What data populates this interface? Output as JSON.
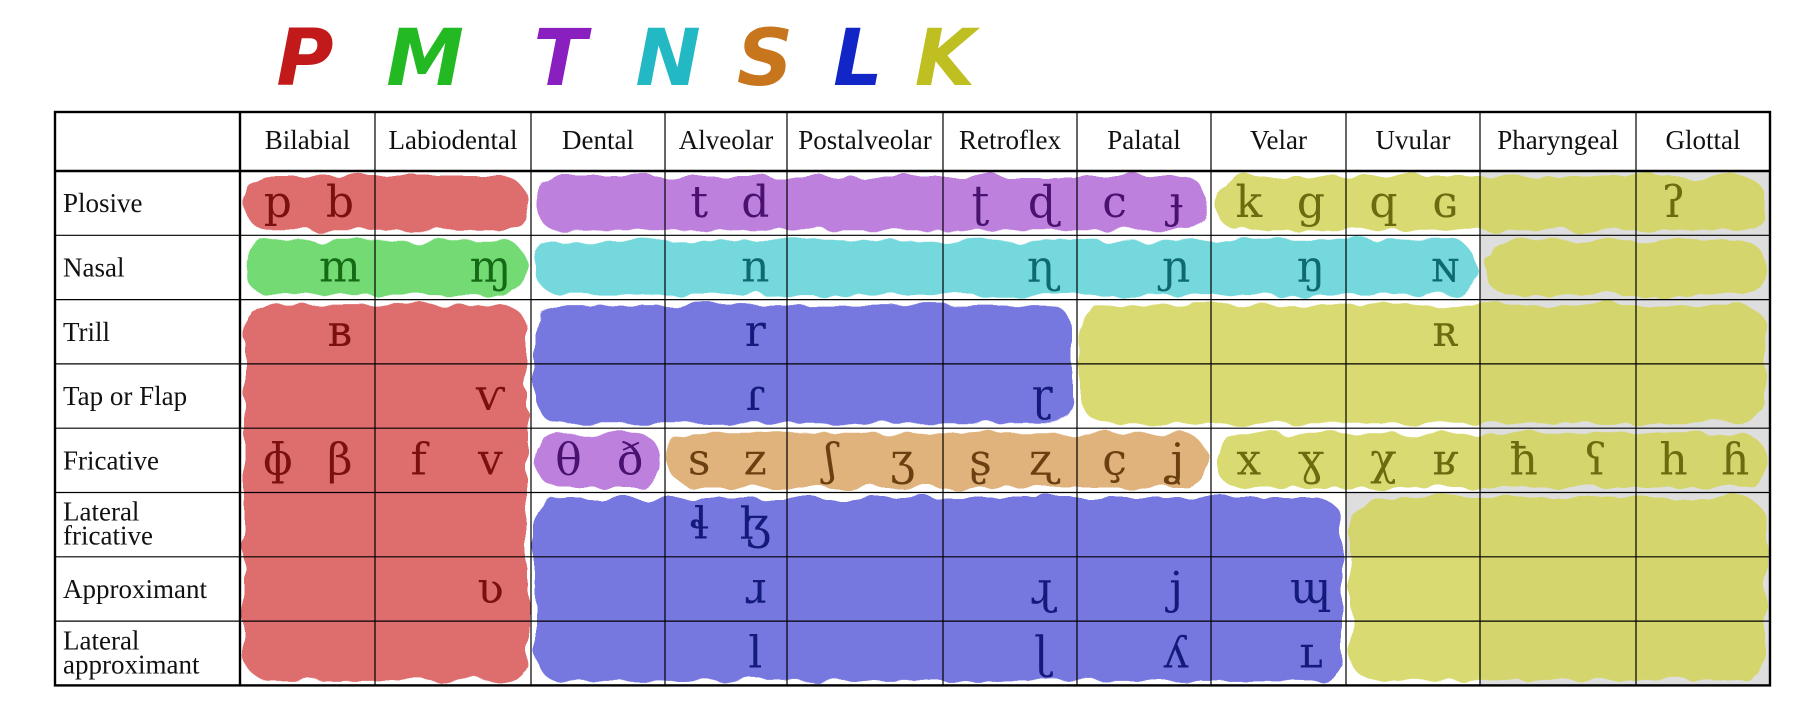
{
  "title_letters": [
    {
      "char": "P",
      "color": "#c21a1a"
    },
    {
      "char": "M",
      "color": "#22b922"
    },
    {
      "char": "T",
      "color": "#8a1fbf"
    },
    {
      "char": "N",
      "color": "#22b8c4"
    },
    {
      "char": "S",
      "color": "#c8761d"
    },
    {
      "char": "L",
      "color": "#1226c8"
    },
    {
      "char": "K",
      "color": "#bfbf22"
    }
  ],
  "columns": [
    "Bilabial",
    "Labiodental",
    "Dental",
    "Alveolar",
    "Postalveolar",
    "Retroflex",
    "Palatal",
    "Velar",
    "Uvular",
    "Pharyngeal",
    "Glottal"
  ],
  "rows": [
    [
      "Plosive"
    ],
    [
      "Nasal"
    ],
    [
      "Trill"
    ],
    [
      "Tap or Flap"
    ],
    [
      "Fricative"
    ],
    [
      "Lateral",
      "fricative"
    ],
    [
      "Approximant"
    ],
    [
      "Lateral",
      "approximant"
    ]
  ],
  "symbols": [
    {
      "t": "p",
      "r": 0,
      "c": 0,
      "s": "L",
      "g": "P"
    },
    {
      "t": "b",
      "r": 0,
      "c": 0,
      "s": "R",
      "g": "P"
    },
    {
      "t": "t",
      "r": 0,
      "c": 3,
      "s": "L",
      "g": "T"
    },
    {
      "t": "d",
      "r": 0,
      "c": 3,
      "s": "R",
      "g": "T"
    },
    {
      "t": "ʈ",
      "r": 0,
      "c": 5,
      "s": "L",
      "g": "T"
    },
    {
      "t": "ɖ",
      "r": 0,
      "c": 5,
      "s": "R",
      "g": "T"
    },
    {
      "t": "c",
      "r": 0,
      "c": 6,
      "s": "L",
      "g": "T"
    },
    {
      "t": "ɟ",
      "r": 0,
      "c": 6,
      "s": "R",
      "g": "T"
    },
    {
      "t": "k",
      "r": 0,
      "c": 7,
      "s": "L",
      "g": "K"
    },
    {
      "t": "g",
      "r": 0,
      "c": 7,
      "s": "R",
      "g": "K"
    },
    {
      "t": "q",
      "r": 0,
      "c": 8,
      "s": "L",
      "g": "K"
    },
    {
      "t": "ɢ",
      "r": 0,
      "c": 8,
      "s": "R",
      "g": "K"
    },
    {
      "t": "ʔ",
      "r": 0,
      "c": 10,
      "s": "L",
      "g": "K"
    },
    {
      "t": "m",
      "r": 1,
      "c": 0,
      "s": "R",
      "g": "M"
    },
    {
      "t": "ɱ",
      "r": 1,
      "c": 1,
      "s": "R",
      "g": "M"
    },
    {
      "t": "n",
      "r": 1,
      "c": 3,
      "s": "R",
      "g": "N"
    },
    {
      "t": "ɳ",
      "r": 1,
      "c": 5,
      "s": "R",
      "g": "N"
    },
    {
      "t": "ɲ",
      "r": 1,
      "c": 6,
      "s": "R",
      "g": "N"
    },
    {
      "t": "ŋ",
      "r": 1,
      "c": 7,
      "s": "R",
      "g": "N"
    },
    {
      "t": "ɴ",
      "r": 1,
      "c": 8,
      "s": "R",
      "g": "N"
    },
    {
      "t": "ʙ",
      "r": 2,
      "c": 0,
      "s": "R",
      "g": "P"
    },
    {
      "t": "r",
      "r": 2,
      "c": 3,
      "s": "R",
      "g": "L"
    },
    {
      "t": "ʀ",
      "r": 2,
      "c": 8,
      "s": "R",
      "g": "K"
    },
    {
      "t": "ⱱ",
      "r": 3,
      "c": 1,
      "s": "R",
      "g": "P"
    },
    {
      "t": "ɾ",
      "r": 3,
      "c": 3,
      "s": "R",
      "g": "L"
    },
    {
      "t": "ɽ",
      "r": 3,
      "c": 5,
      "s": "R",
      "g": "L"
    },
    {
      "t": "ɸ",
      "r": 4,
      "c": 0,
      "s": "L",
      "g": "P"
    },
    {
      "t": "β",
      "r": 4,
      "c": 0,
      "s": "R",
      "g": "P"
    },
    {
      "t": "f",
      "r": 4,
      "c": 1,
      "s": "L",
      "g": "P"
    },
    {
      "t": "v",
      "r": 4,
      "c": 1,
      "s": "R",
      "g": "P"
    },
    {
      "t": "θ",
      "r": 4,
      "c": 2,
      "s": "L",
      "g": "T"
    },
    {
      "t": "ð",
      "r": 4,
      "c": 2,
      "s": "R",
      "g": "T"
    },
    {
      "t": "s",
      "r": 4,
      "c": 3,
      "s": "L",
      "g": "S"
    },
    {
      "t": "z",
      "r": 4,
      "c": 3,
      "s": "R",
      "g": "S"
    },
    {
      "t": "ʃ",
      "r": 4,
      "c": 4,
      "s": "L",
      "g": "S"
    },
    {
      "t": "ʒ",
      "r": 4,
      "c": 4,
      "s": "R",
      "g": "S"
    },
    {
      "t": "ʂ",
      "r": 4,
      "c": 5,
      "s": "L",
      "g": "S"
    },
    {
      "t": "ʐ",
      "r": 4,
      "c": 5,
      "s": "R",
      "g": "S"
    },
    {
      "t": "ç",
      "r": 4,
      "c": 6,
      "s": "L",
      "g": "S"
    },
    {
      "t": "ʝ",
      "r": 4,
      "c": 6,
      "s": "R",
      "g": "S"
    },
    {
      "t": "x",
      "r": 4,
      "c": 7,
      "s": "L",
      "g": "K"
    },
    {
      "t": "ɣ",
      "r": 4,
      "c": 7,
      "s": "R",
      "g": "K"
    },
    {
      "t": "χ",
      "r": 4,
      "c": 8,
      "s": "L",
      "g": "K"
    },
    {
      "t": "ʁ",
      "r": 4,
      "c": 8,
      "s": "R",
      "g": "K"
    },
    {
      "t": "ħ",
      "r": 4,
      "c": 9,
      "s": "L",
      "g": "K"
    },
    {
      "t": "ʕ",
      "r": 4,
      "c": 9,
      "s": "R",
      "g": "K"
    },
    {
      "t": "h",
      "r": 4,
      "c": 10,
      "s": "L",
      "g": "K"
    },
    {
      "t": "ɦ",
      "r": 4,
      "c": 10,
      "s": "R",
      "g": "K"
    },
    {
      "t": "ɬ",
      "r": 5,
      "c": 3,
      "s": "L",
      "g": "L"
    },
    {
      "t": "ɮ",
      "r": 5,
      "c": 3,
      "s": "R",
      "g": "L"
    },
    {
      "t": "ʋ",
      "r": 6,
      "c": 1,
      "s": "R",
      "g": "P"
    },
    {
      "t": "ɹ",
      "r": 6,
      "c": 3,
      "s": "R",
      "g": "L"
    },
    {
      "t": "ɻ",
      "r": 6,
      "c": 5,
      "s": "R",
      "g": "L"
    },
    {
      "t": "j",
      "r": 6,
      "c": 6,
      "s": "R",
      "g": "L"
    },
    {
      "t": "ɰ",
      "r": 6,
      "c": 7,
      "s": "R",
      "g": "L"
    },
    {
      "t": "l",
      "r": 7,
      "c": 3,
      "s": "R",
      "g": "L"
    },
    {
      "t": "ɭ",
      "r": 7,
      "c": 5,
      "s": "R",
      "g": "L"
    },
    {
      "t": "ʎ",
      "r": 7,
      "c": 6,
      "s": "R",
      "g": "L"
    },
    {
      "t": "ʟ",
      "r": 7,
      "c": 7,
      "s": "R",
      "g": "L"
    }
  ],
  "colors": {
    "P_fill": "#d95555",
    "M_fill": "#5cd45c",
    "T_fill": "#b36ad8",
    "N_fill": "#5cd2d6",
    "S_fill": "#dba566",
    "L_fill": "#5f61da",
    "K_fill": "#d4d45a",
    "P_text": "#7a1010",
    "M_text": "#156b15",
    "T_text": "#4a1270",
    "N_text": "#0f6a70",
    "S_text": "#6b4010",
    "L_text": "#141a7a",
    "K_text": "#6b6b10",
    "impossible_shade": "#dedede",
    "grid": "#000000"
  }
}
